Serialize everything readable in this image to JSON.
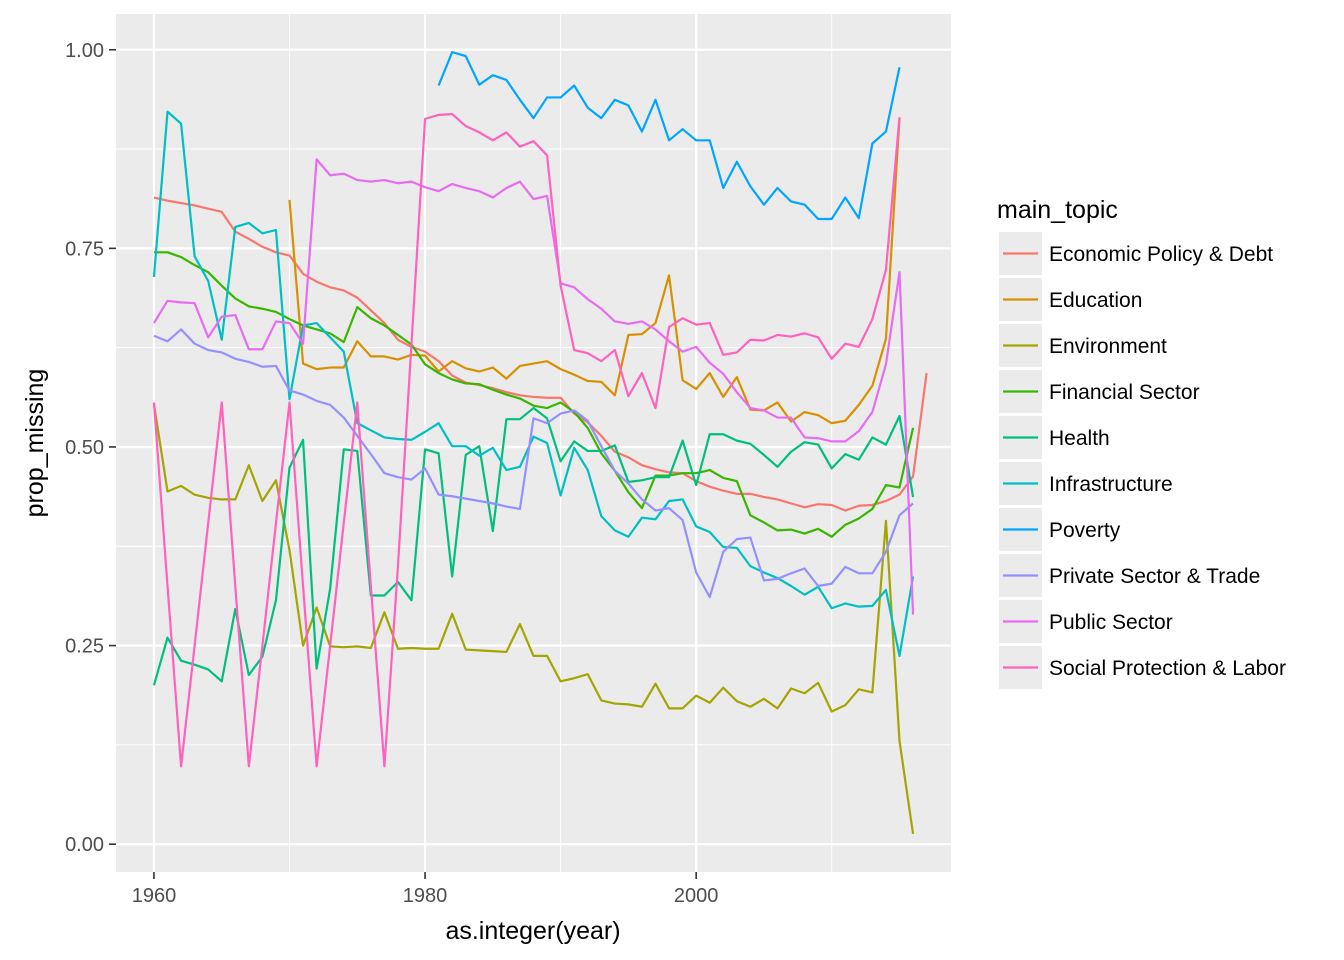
{
  "chart_data": {
    "type": "line",
    "title": "",
    "xlabel": "as.integer(year)",
    "ylabel": "prop_missing",
    "xlim": [
      1957.2,
      2018.8
    ],
    "ylim": [
      -0.035,
      1.045
    ],
    "x_ticks": [
      1960,
      1980,
      2000
    ],
    "x_tick_labels": [
      "1960",
      "1980",
      "2000"
    ],
    "y_ticks": [
      0,
      0.25,
      0.5,
      0.75,
      1
    ],
    "y_tick_labels": [
      "0.00",
      "0.25",
      "0.50",
      "0.75",
      "1.00"
    ],
    "grid": true,
    "legend_title": "main_topic",
    "legend_position": "right",
    "series": [
      {
        "name": "Economic Policy & Debt",
        "color": "#F8766D",
        "x_start": 1960,
        "values": [
          0.814,
          0.81,
          0.807,
          0.804,
          0.8,
          0.796,
          0.771,
          0.762,
          0.752,
          0.745,
          0.741,
          0.718,
          0.708,
          0.701,
          0.697,
          0.688,
          0.672,
          0.656,
          0.635,
          0.626,
          0.62,
          0.608,
          0.59,
          0.581,
          0.578,
          0.574,
          0.569,
          0.565,
          0.563,
          0.562,
          0.562,
          0.542,
          0.531,
          0.514,
          0.494,
          0.487,
          0.477,
          0.472,
          0.468,
          0.467,
          0.457,
          0.45,
          0.445,
          0.441,
          0.441,
          0.437,
          0.434,
          0.429,
          0.424,
          0.428,
          0.427,
          0.42,
          0.426,
          0.427,
          0.432,
          0.44,
          0.463,
          0.593
        ]
      },
      {
        "name": "Education",
        "color": "#D89000",
        "x_start": 1970,
        "values": [
          0.811,
          0.605,
          0.598,
          0.6,
          0.6,
          0.633,
          0.614,
          0.614,
          0.61,
          0.616,
          0.615,
          0.595,
          0.608,
          0.599,
          0.595,
          0.6,
          0.586,
          0.602,
          0.605,
          0.608,
          0.598,
          0.591,
          0.583,
          0.582,
          0.565,
          0.641,
          0.642,
          0.656,
          0.716,
          0.584,
          0.573,
          0.593,
          0.563,
          0.588,
          0.547,
          0.546,
          0.556,
          0.532,
          0.544,
          0.54,
          0.53,
          0.533,
          0.553,
          0.577,
          0.636,
          0.914
        ]
      },
      {
        "name": "Environment",
        "color": "#A3A500",
        "x_start": 1960,
        "values": [
          0.554,
          0.444,
          0.451,
          0.44,
          0.436,
          0.434,
          0.434,
          0.477,
          0.432,
          0.458,
          0.37,
          0.25,
          0.298,
          0.249,
          0.248,
          0.249,
          0.247,
          0.292,
          0.246,
          0.247,
          0.246,
          0.246,
          0.29,
          0.245,
          0.244,
          0.243,
          0.242,
          0.277,
          0.237,
          0.237,
          0.205,
          0.209,
          0.214,
          0.181,
          0.177,
          0.176,
          0.173,
          0.202,
          0.171,
          0.171,
          0.187,
          0.178,
          0.197,
          0.18,
          0.173,
          0.183,
          0.171,
          0.196,
          0.19,
          0.203,
          0.167,
          0.175,
          0.195,
          0.191,
          0.407,
          0.13,
          0.013
        ]
      },
      {
        "name": "Financial Sector",
        "color": "#39B600",
        "x_start": 1960,
        "values": [
          0.745,
          0.745,
          0.739,
          0.729,
          0.72,
          0.703,
          0.687,
          0.677,
          0.674,
          0.67,
          0.661,
          0.653,
          0.648,
          0.643,
          0.632,
          0.676,
          0.662,
          0.653,
          0.641,
          0.629,
          0.604,
          0.593,
          0.585,
          0.58,
          0.579,
          0.572,
          0.566,
          0.561,
          0.552,
          0.549,
          0.556,
          0.544,
          0.524,
          0.492,
          0.47,
          0.443,
          0.423,
          0.464,
          0.464,
          0.467,
          0.467,
          0.471,
          0.461,
          0.457,
          0.414,
          0.405,
          0.395,
          0.396,
          0.391,
          0.397,
          0.387,
          0.402,
          0.41,
          0.422,
          0.452,
          0.449,
          0.524
        ]
      },
      {
        "name": "Health",
        "color": "#00BF7D",
        "x_start": 1960,
        "values": [
          0.2,
          0.26,
          0.231,
          0.226,
          0.22,
          0.205,
          0.296,
          0.213,
          0.236,
          0.307,
          0.474,
          0.509,
          0.221,
          0.322,
          0.497,
          0.495,
          0.313,
          0.313,
          0.33,
          0.307,
          0.497,
          0.492,
          0.337,
          0.49,
          0.501,
          0.394,
          0.535,
          0.535,
          0.549,
          0.536,
          0.482,
          0.507,
          0.495,
          0.495,
          0.502,
          0.456,
          0.458,
          0.462,
          0.462,
          0.508,
          0.452,
          0.516,
          0.516,
          0.508,
          0.504,
          0.49,
          0.475,
          0.494,
          0.506,
          0.503,
          0.473,
          0.491,
          0.484,
          0.512,
          0.503,
          0.539,
          0.437
        ]
      },
      {
        "name": "Infrastructure",
        "color": "#00BFC4",
        "x_start": 1960,
        "values": [
          0.714,
          0.922,
          0.907,
          0.74,
          0.709,
          0.635,
          0.777,
          0.782,
          0.769,
          0.773,
          0.56,
          0.653,
          0.656,
          0.638,
          0.62,
          0.53,
          0.521,
          0.512,
          0.51,
          0.509,
          0.519,
          0.53,
          0.501,
          0.501,
          0.489,
          0.499,
          0.471,
          0.475,
          0.513,
          0.505,
          0.439,
          0.499,
          0.471,
          0.413,
          0.395,
          0.387,
          0.411,
          0.409,
          0.432,
          0.434,
          0.4,
          0.393,
          0.374,
          0.373,
          0.35,
          0.342,
          0.335,
          0.325,
          0.314,
          0.324,
          0.297,
          0.303,
          0.299,
          0.3,
          0.32,
          0.237,
          0.337
        ]
      },
      {
        "name": "Poverty",
        "color": "#00A5FF",
        "x_start": 1981,
        "values": [
          0.955,
          0.997,
          0.992,
          0.956,
          0.968,
          0.962,
          0.937,
          0.914,
          0.94,
          0.94,
          0.955,
          0.927,
          0.914,
          0.937,
          0.93,
          0.897,
          0.937,
          0.886,
          0.9,
          0.886,
          0.886,
          0.826,
          0.859,
          0.828,
          0.805,
          0.826,
          0.809,
          0.805,
          0.787,
          0.787,
          0.814,
          0.788,
          0.882,
          0.897,
          0.978
        ]
      },
      {
        "name": "Private Sector & Trade",
        "color": "#9590FF",
        "x_start": 1960,
        "values": [
          0.64,
          0.633,
          0.648,
          0.63,
          0.622,
          0.619,
          0.611,
          0.607,
          0.601,
          0.602,
          0.571,
          0.566,
          0.558,
          0.553,
          0.537,
          0.514,
          0.491,
          0.467,
          0.462,
          0.459,
          0.473,
          0.44,
          0.438,
          0.435,
          0.432,
          0.429,
          0.425,
          0.422,
          0.536,
          0.53,
          0.542,
          0.546,
          0.533,
          0.501,
          0.47,
          0.454,
          0.434,
          0.42,
          0.423,
          0.408,
          0.342,
          0.311,
          0.368,
          0.384,
          0.386,
          0.332,
          0.334,
          0.341,
          0.347,
          0.325,
          0.328,
          0.349,
          0.341,
          0.341,
          0.368,
          0.414,
          0.429
        ]
      },
      {
        "name": "Public Sector",
        "color": "#E76BF3",
        "x_start": 1960,
        "values": [
          0.656,
          0.684,
          0.682,
          0.681,
          0.638,
          0.664,
          0.666,
          0.623,
          0.623,
          0.658,
          0.656,
          0.63,
          0.862,
          0.842,
          0.844,
          0.836,
          0.834,
          0.836,
          0.832,
          0.834,
          0.827,
          0.822,
          0.831,
          0.826,
          0.822,
          0.814,
          0.826,
          0.834,
          0.812,
          0.816,
          0.706,
          0.701,
          0.686,
          0.674,
          0.658,
          0.655,
          0.658,
          0.648,
          0.633,
          0.62,
          0.626,
          0.606,
          0.592,
          0.569,
          0.549,
          0.546,
          0.537,
          0.537,
          0.512,
          0.511,
          0.507,
          0.507,
          0.52,
          0.544,
          0.604,
          0.72,
          0.289
        ]
      },
      {
        "name": "Social Protection & Labor",
        "color": "#FF62BC",
        "x_start": 1960,
        "values": [
          0.556,
          0.325,
          0.098,
          0.25,
          0.404,
          0.556,
          0.325,
          0.098,
          0.25,
          0.404,
          0.556,
          0.325,
          0.098,
          0.25,
          0.404,
          0.556,
          0.325,
          0.098,
          0.35,
          0.63,
          0.913,
          0.918,
          0.919,
          0.904,
          0.896,
          0.886,
          0.896,
          0.878,
          0.885,
          0.867,
          0.703,
          0.622,
          0.618,
          0.608,
          0.622,
          0.564,
          0.593,
          0.549,
          0.651,
          0.662,
          0.654,
          0.656,
          0.616,
          0.619,
          0.635,
          0.634,
          0.641,
          0.639,
          0.643,
          0.638,
          0.611,
          0.63,
          0.626,
          0.661,
          0.723,
          0.915
        ]
      }
    ]
  }
}
